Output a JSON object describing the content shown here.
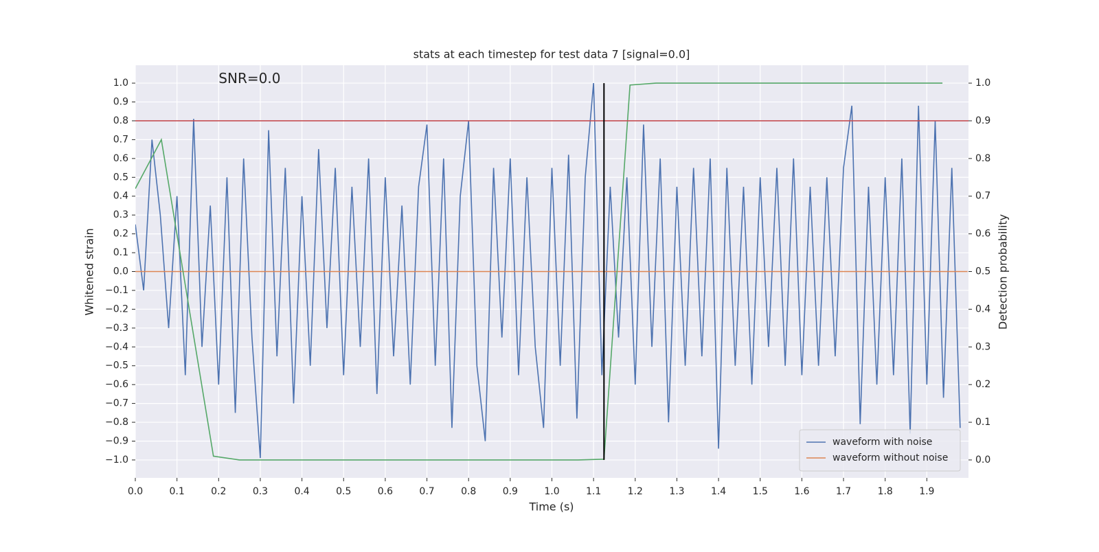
{
  "chart_data": {
    "type": "line",
    "title": "stats at each timestep for test data 7 [signal=0.0]",
    "xlabel": "Time (s)",
    "ylabel": "Whitened strain",
    "y2label": "Detection probability",
    "annotation": {
      "text": "SNR=0.0",
      "x": 0.2,
      "y": 1.02
    },
    "xlim": [
      0,
      2.0
    ],
    "ylim": [
      -1.095,
      1.095
    ],
    "y2lim": [
      -0.0475,
      1.0475
    ],
    "xticks": [
      {
        "value": 0,
        "label": "0.0"
      },
      0.1,
      0.2,
      0.3,
      0.4,
      0.5,
      0.6,
      0.7,
      0.8,
      0.9,
      {
        "value": 1,
        "label": "1.0"
      },
      1.1,
      1.2,
      1.3,
      1.4,
      1.5,
      1.6,
      1.7,
      1.8,
      1.9
    ],
    "yticks": [
      {
        "value": -1,
        "label": "−1.0"
      },
      {
        "value": -0.9,
        "label": "−0.9"
      },
      {
        "value": -0.8,
        "label": "−0.8"
      },
      {
        "value": -0.7,
        "label": "−0.7"
      },
      {
        "value": -0.6,
        "label": "−0.6"
      },
      {
        "value": -0.5,
        "label": "−0.5"
      },
      {
        "value": -0.4,
        "label": "−0.4"
      },
      {
        "value": -0.3,
        "label": "−0.3"
      },
      {
        "value": -0.2,
        "label": "−0.2"
      },
      {
        "value": -0.1,
        "label": "−0.1"
      },
      {
        "value": 0,
        "label": "0.0"
      },
      0.1,
      0.2,
      0.3,
      0.4,
      0.5,
      0.6,
      0.7,
      0.8,
      0.9,
      {
        "value": 1,
        "label": "1.0"
      }
    ],
    "y2ticks": [
      {
        "value": 0,
        "label": "0.0"
      },
      0.1,
      0.2,
      0.3,
      0.4,
      0.5,
      0.6,
      0.7,
      0.8,
      0.9,
      {
        "value": 1,
        "label": "1.0"
      }
    ],
    "grid": true,
    "legend": "lower right",
    "series": [
      {
        "name": "waveform with noise",
        "color": "#4c72b0",
        "x": [
          0,
          0.02,
          0.04,
          0.06,
          0.08,
          0.1,
          0.12,
          0.14,
          0.16,
          0.18,
          0.2,
          0.22,
          0.24,
          0.26,
          0.28,
          0.3,
          0.32,
          0.34,
          0.36,
          0.38,
          0.4,
          0.42,
          0.44,
          0.46,
          0.48,
          0.5,
          0.52,
          0.54,
          0.56,
          0.58,
          0.6,
          0.62,
          0.64,
          0.66,
          0.68,
          0.7,
          0.72,
          0.74,
          0.76,
          0.78,
          0.8,
          0.82,
          0.84,
          0.86,
          0.88,
          0.9,
          0.92,
          0.94,
          0.96,
          0.98,
          1,
          1.02,
          1.04,
          1.06,
          1.08,
          1.1,
          1.12,
          1.14,
          1.16,
          1.18,
          1.2,
          1.22,
          1.24,
          1.26,
          1.28,
          1.3,
          1.32,
          1.34,
          1.36,
          1.38,
          1.4,
          1.42,
          1.44,
          1.46,
          1.48,
          1.5,
          1.52,
          1.54,
          1.56,
          1.58,
          1.6,
          1.62,
          1.64,
          1.66,
          1.68,
          1.7,
          1.72,
          1.74,
          1.76,
          1.78,
          1.8,
          1.82,
          1.84,
          1.86,
          1.88,
          1.9,
          1.92,
          1.94,
          1.96,
          1.98
        ],
        "values": [
          0.25,
          -0.1,
          0.7,
          0.3,
          -0.3,
          0.4,
          -0.55,
          0.81,
          -0.4,
          0.35,
          -0.6,
          0.5,
          -0.75,
          0.6,
          -0.35,
          -0.99,
          0.75,
          -0.45,
          0.55,
          -0.7,
          0.4,
          -0.5,
          0.65,
          -0.3,
          0.55,
          -0.55,
          0.45,
          -0.4,
          0.6,
          -0.65,
          0.5,
          -0.45,
          0.35,
          -0.6,
          0.45,
          0.78,
          -0.5,
          0.6,
          -0.83,
          0.4,
          0.8,
          -0.5,
          -0.9,
          0.55,
          -0.35,
          0.6,
          -0.55,
          0.5,
          -0.4,
          -0.83,
          0.55,
          -0.5,
          0.62,
          -0.78,
          0.5,
          1.0,
          -0.55,
          0.45,
          -0.35,
          0.5,
          -0.6,
          0.78,
          -0.4,
          0.6,
          -0.8,
          0.45,
          -0.5,
          0.55,
          -0.45,
          0.6,
          -0.94,
          0.55,
          -0.5,
          0.45,
          -0.6,
          0.5,
          -0.4,
          0.55,
          -0.5,
          0.6,
          -0.55,
          0.45,
          -0.5,
          0.5,
          -0.45,
          0.55,
          0.88,
          -0.81,
          0.45,
          -0.6,
          0.5,
          -0.55,
          0.6,
          -0.86,
          0.88,
          -0.6,
          0.8,
          -0.67,
          0.55,
          -0.83
        ]
      },
      {
        "name": "waveform without noise",
        "color": "#dd8452",
        "x": [
          0,
          1.998
        ],
        "values": [
          0,
          0
        ]
      },
      {
        "color": "#55a868",
        "axis": "y2",
        "x": [
          0,
          0.0625,
          0.125,
          0.1875,
          0.25,
          0.3125,
          0.375,
          0.4375,
          0.5,
          0.5625,
          0.625,
          0.6875,
          0.75,
          0.8125,
          0.875,
          0.9375,
          1,
          1.0625,
          1.125,
          1.1875,
          1.25,
          1.3125,
          1.375,
          1.4375,
          1.5,
          1.5625,
          1.625,
          1.6875,
          1.75,
          1.8125,
          1.875,
          1.9375
        ],
        "values": [
          0.72,
          0.85,
          0.43,
          0.01,
          0,
          0,
          0,
          0,
          0,
          0,
          0,
          0,
          0,
          0,
          0,
          0,
          0,
          0,
          0.002,
          0.995,
          1,
          1,
          1,
          1,
          1,
          1,
          1,
          1,
          1,
          1,
          1,
          1
        ]
      }
    ],
    "hline": {
      "y": 0.9,
      "axis": "y2",
      "color": "#c44e52"
    },
    "vline": {
      "x": 1.125,
      "ymin": -1,
      "ymax": 1,
      "color": "#000000"
    }
  }
}
